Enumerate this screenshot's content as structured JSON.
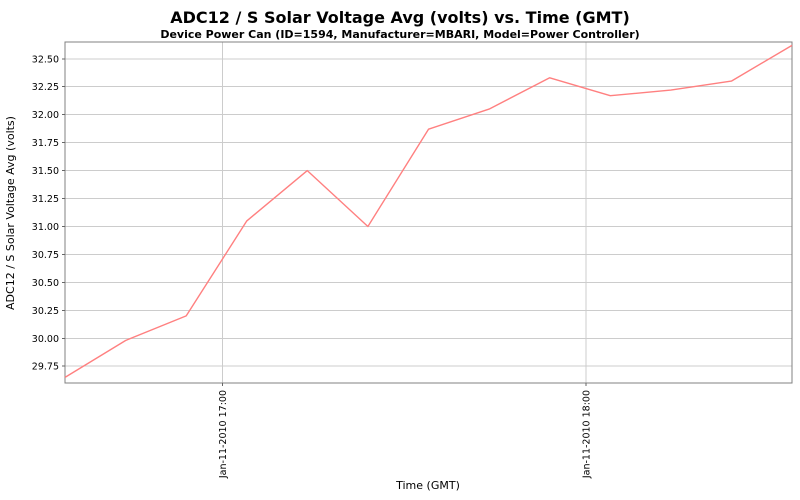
{
  "chart_data": {
    "type": "line",
    "title": "ADC12 / S Solar Voltage Avg (volts) vs. Time (GMT)",
    "subtitle": "Device Power Can (ID=1594, Manufacturer=MBARI, Model=Power Controller)",
    "xlabel": "Time (GMT)",
    "ylabel": "ADC12 / S Solar Voltage Avg (volts)",
    "legend": "none",
    "grid": true,
    "line_color": "#ff8080",
    "grid_color": "#cccccc",
    "ylim": [
      29.6,
      32.65
    ],
    "yticks": [
      29.75,
      30.0,
      30.25,
      30.5,
      30.75,
      31.0,
      31.25,
      31.5,
      31.75,
      32.0,
      32.25,
      32.5
    ],
    "x_axis_unit": "minutes of day, Jan-11-2010 GMT (point times estimated from tick gridlines)",
    "xlim": [
      994,
      1114
    ],
    "xticks": [
      {
        "minutes": 1020,
        "label": "Jan-11-2010 17:00"
      },
      {
        "minutes": 1080,
        "label": "Jan-11-2010 18:00"
      }
    ],
    "series": [
      {
        "name": "ADC12 / S Solar Voltage Avg (volts)",
        "points": [
          {
            "minutes": 994,
            "time_est": "16:34",
            "volts": 29.65
          },
          {
            "minutes": 1004,
            "time_est": "16:44",
            "volts": 29.98
          },
          {
            "minutes": 1014,
            "time_est": "16:54",
            "volts": 30.2
          },
          {
            "minutes": 1024,
            "time_est": "17:04",
            "volts": 31.05
          },
          {
            "minutes": 1034,
            "time_est": "17:14",
            "volts": 31.5
          },
          {
            "minutes": 1044,
            "time_est": "17:24",
            "volts": 31.0
          },
          {
            "minutes": 1054,
            "time_est": "17:34",
            "volts": 31.87
          },
          {
            "minutes": 1064,
            "time_est": "17:44",
            "volts": 32.05
          },
          {
            "minutes": 1074,
            "time_est": "17:54",
            "volts": 32.33
          },
          {
            "minutes": 1084,
            "time_est": "18:04",
            "volts": 32.17
          },
          {
            "minutes": 1094,
            "time_est": "18:14",
            "volts": 32.22
          },
          {
            "minutes": 1104,
            "time_est": "18:24",
            "volts": 32.3
          },
          {
            "minutes": 1114,
            "time_est": "18:34",
            "volts": 32.62
          }
        ]
      }
    ]
  }
}
